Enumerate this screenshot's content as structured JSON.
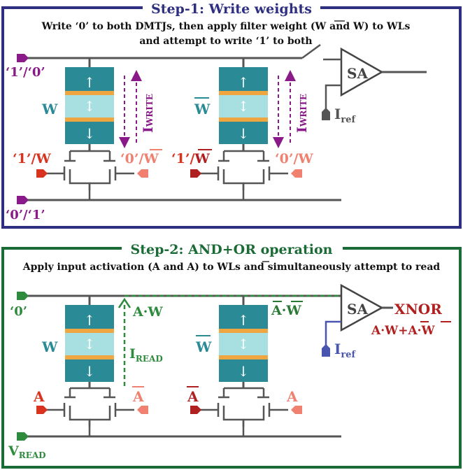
{
  "colors": {
    "step1_border": "#2e2f80",
    "step2_border": "#1a6b35",
    "mtj_teal": "#2a8a96",
    "mtj_light": "#a8dfe0",
    "mtj_orange": "#f0a640",
    "purple": "#8a1a8a",
    "red": "#d9331f",
    "salmon": "#f08070",
    "green": "#2e8b3e",
    "dark_green": "#2a7a35",
    "dark_red": "#b02020",
    "blue": "#4a55b0",
    "wire": "#555555"
  },
  "icons": {
    "sense_amp": "triangle-sense-amplifier-icon",
    "arrow_up": "arrow-up-icon",
    "arrow_down": "arrow-down-icon",
    "arrow_updown": "double-arrow-icon",
    "transistor": "nmos-transistor-icon",
    "current_source": "reference-current-icon"
  },
  "step1": {
    "title": "Step-1: Write weights",
    "caption_line1": "Write ‘0’ to both DMTJs, then apply filter weight (W and W) to WLs",
    "caption_line2": "and attempt to write ‘1’ to both",
    "top_line_label": "‘1’/‘0’",
    "bottom_line_label": "‘0’/‘1’",
    "sa_label": "SA",
    "iref_label": "I",
    "iref_sub": "ref",
    "left_cell": {
      "mtj_label": "W",
      "wl_left": "‘1’/W",
      "wl_right_prefix": "‘0’/",
      "wl_right_bar": "W",
      "iwrite_main": "I",
      "iwrite_sub": "WRITE"
    },
    "right_cell": {
      "mtj_label": "W",
      "wl_left_prefix": "‘1’/",
      "wl_left_bar": "W",
      "wl_right": "‘0’/W",
      "iwrite_main": "I",
      "iwrite_sub": "WRITE"
    }
  },
  "step2": {
    "title": "Step-2: AND+OR operation",
    "caption": "Apply input activation (A and A) to WLs and simultaneously attempt to read",
    "top_line_label": "‘0’",
    "bottom_line_label": "V",
    "bottom_line_sub": "READ",
    "sa_label": "SA",
    "iref_label": "I",
    "iref_sub": "ref",
    "output_label": "XNOR",
    "output_expr_1": "A·W+",
    "output_expr_bar": "A·W",
    "and_label": "A·W",
    "nand_label": "A·W",
    "iread_main": "I",
    "iread_sub": "READ",
    "left_cell": {
      "mtj_label": "W",
      "wl_left": "A",
      "wl_right": "A"
    },
    "right_cell": {
      "mtj_label": "W",
      "wl_left": "A",
      "wl_right": "A"
    }
  }
}
